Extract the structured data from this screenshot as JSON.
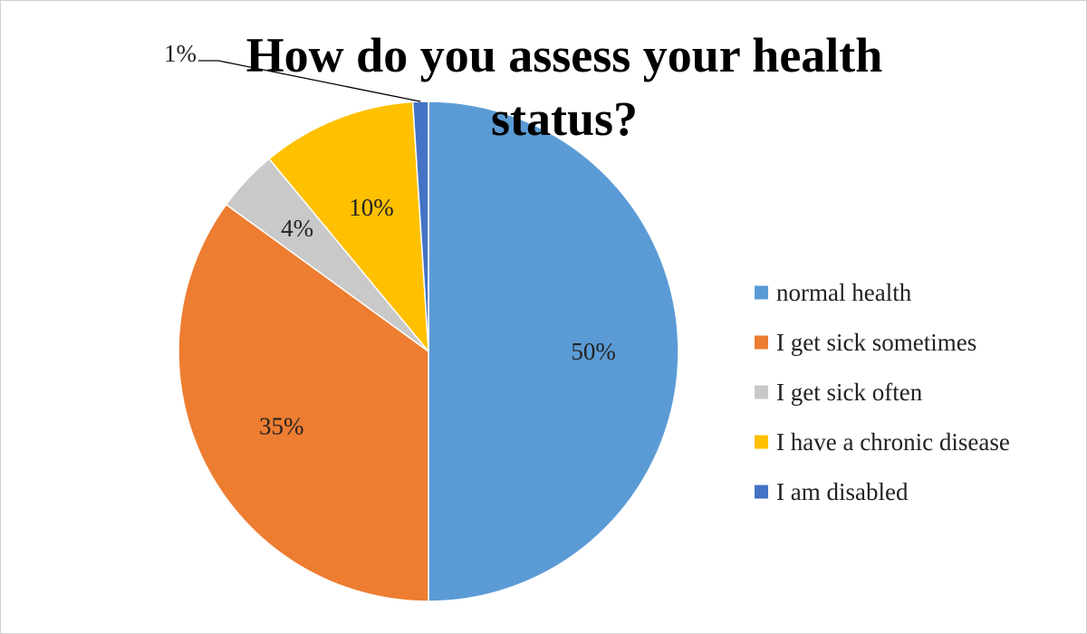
{
  "chart_data": {
    "type": "pie",
    "title_lines": [
      "How do you assess your health",
      "status?"
    ],
    "slices": [
      {
        "name": "normal health",
        "value": 50,
        "label": "50%",
        "color": "#5B9BD5"
      },
      {
        "name": "I get sick sometimes",
        "value": 35,
        "label": "35%",
        "color": "#ED7D31"
      },
      {
        "name": "I get sick often",
        "value": 4,
        "label": "4%",
        "color": "#C9C9C9"
      },
      {
        "name": "I have a chronic disease",
        "value": 10,
        "label": "10%",
        "color": "#FFC000"
      },
      {
        "name": "I am disabled",
        "value": 1,
        "label": "1%",
        "color": "#4472C4"
      }
    ],
    "legend_position": "right"
  }
}
